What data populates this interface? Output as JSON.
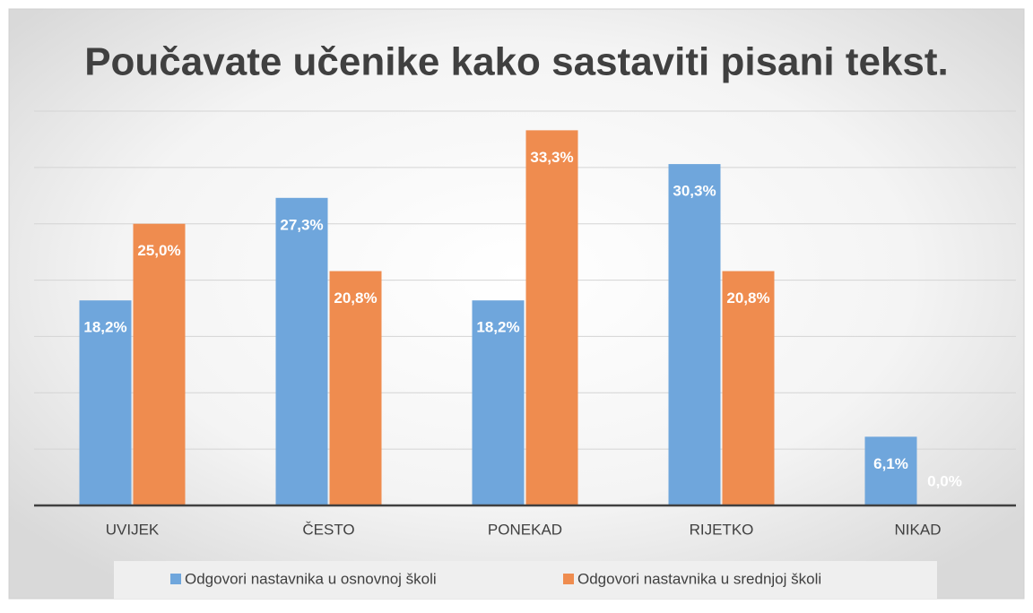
{
  "chart_data": {
    "type": "bar",
    "title": "Poučavate učenike kako sastaviti pisani tekst.",
    "categories": [
      "UVIJEK",
      "ČESTO",
      "PONEKAD",
      "RIJETKO",
      "NIKAD"
    ],
    "series": [
      {
        "name": "Odgovori nastavnika u osnovnoj školi",
        "color": "#6fa6dc",
        "values": [
          18.2,
          27.3,
          18.2,
          30.3,
          6.1
        ],
        "value_labels": [
          "18,2%",
          "27,3%",
          "18,2%",
          "30,3%",
          "6,1%"
        ]
      },
      {
        "name": "Odgovori nastavnika u srednjoj školi",
        "color": "#ef8c4f",
        "values": [
          25.0,
          20.8,
          33.3,
          20.8,
          0.0
        ],
        "value_labels": [
          "25,0%",
          "20,8%",
          "33,3%",
          "20,8%",
          "0,0%"
        ]
      }
    ],
    "ylim": [
      0,
      35
    ],
    "yticks": [
      0,
      5,
      10,
      15,
      20,
      25,
      30,
      35
    ],
    "grid": true,
    "legend": "bottom"
  }
}
